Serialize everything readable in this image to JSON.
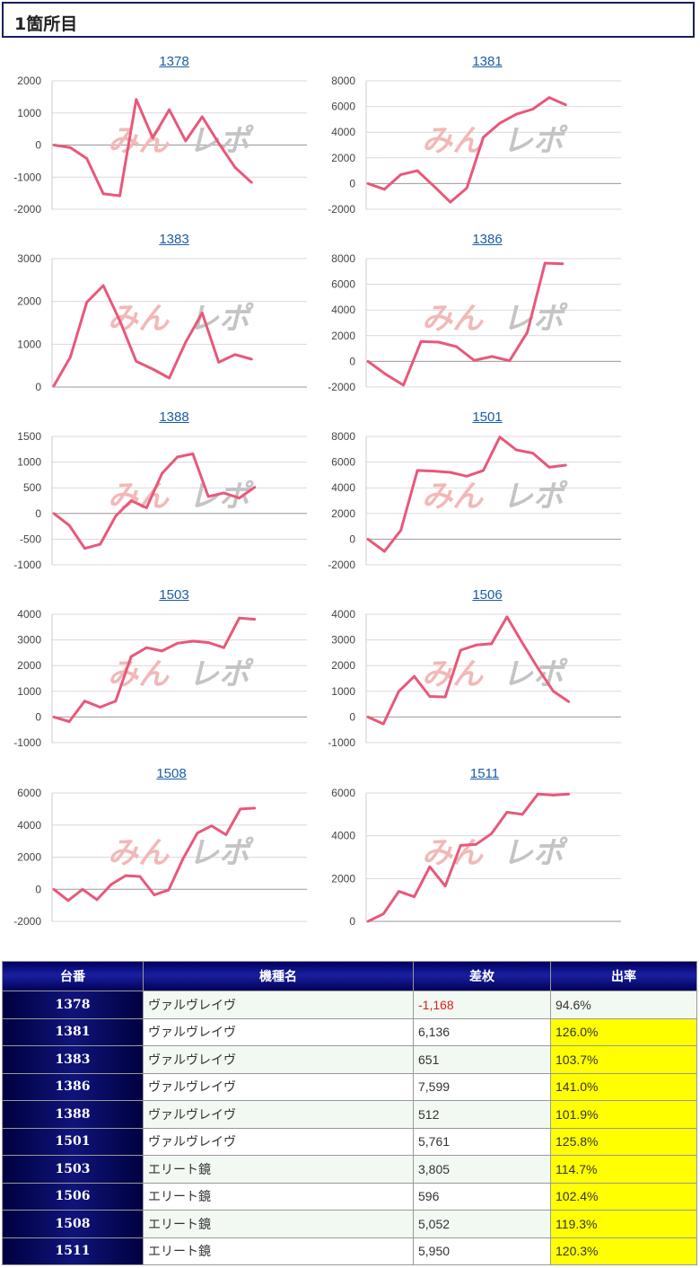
{
  "header": {
    "title": "1箇所目"
  },
  "colors": {
    "line": "#e8587a",
    "grid": "#d9d9d9",
    "link": "#1b5ca8",
    "highlight": "#ffff00",
    "negative": "#d81f1f",
    "header_bg": "#10147a"
  },
  "watermark": {
    "part1": "みん",
    "part2": "レポ"
  },
  "chart_data": [
    {
      "type": "line",
      "title": "1378",
      "ylim": [
        -2000,
        2000
      ],
      "yticks": [
        2000,
        1000,
        0,
        -1000,
        -2000
      ],
      "values": [
        0,
        -80,
        -420,
        -1520,
        -1580,
        1420,
        220,
        1100,
        130,
        880,
        60,
        -700,
        -1168
      ]
    },
    {
      "type": "line",
      "title": "1381",
      "ylim": [
        -2000,
        8000
      ],
      "yticks": [
        8000,
        6000,
        4000,
        2000,
        0,
        -2000
      ],
      "values": [
        0,
        -450,
        700,
        1000,
        -200,
        -1450,
        -350,
        3600,
        4700,
        5400,
        5800,
        6700,
        6136
      ]
    },
    {
      "type": "line",
      "title": "1383",
      "ylim": [
        0,
        3000
      ],
      "yticks": [
        3000,
        2000,
        1000,
        0
      ],
      "values": [
        30,
        700,
        1980,
        2370,
        1550,
        600,
        420,
        210,
        1050,
        1730,
        580,
        760,
        651
      ]
    },
    {
      "type": "line",
      "title": "1386",
      "ylim": [
        -2000,
        8000
      ],
      "yticks": [
        8000,
        6000,
        4000,
        2000,
        0,
        -2000
      ],
      "values": [
        0,
        -1000,
        -1850,
        1550,
        1500,
        1150,
        80,
        380,
        50,
        2250,
        7650,
        7599
      ]
    },
    {
      "type": "line",
      "title": "1388",
      "ylim": [
        -1000,
        1500
      ],
      "yticks": [
        1500,
        1000,
        500,
        0,
        -500,
        -1000
      ],
      "values": [
        0,
        -230,
        -680,
        -600,
        -50,
        250,
        110,
        780,
        1100,
        1160,
        330,
        400,
        300,
        512
      ]
    },
    {
      "type": "line",
      "title": "1501",
      "ylim": [
        -2000,
        8000
      ],
      "yticks": [
        8000,
        6000,
        4000,
        2000,
        0,
        -2000
      ],
      "values": [
        0,
        -950,
        700,
        5350,
        5300,
        5200,
        4900,
        5350,
        7950,
        6950,
        6700,
        5600,
        5761
      ]
    },
    {
      "type": "line",
      "title": "1503",
      "ylim": [
        -1000,
        4000
      ],
      "yticks": [
        4000,
        3000,
        2000,
        1000,
        0,
        -1000
      ],
      "values": [
        0,
        -180,
        620,
        380,
        620,
        2350,
        2700,
        2570,
        2870,
        2950,
        2900,
        2700,
        3850,
        3805
      ]
    },
    {
      "type": "line",
      "title": "1506",
      "ylim": [
        -1000,
        4000
      ],
      "yticks": [
        4000,
        3000,
        2000,
        1000,
        0,
        -1000
      ],
      "values": [
        0,
        -270,
        1000,
        1580,
        800,
        780,
        2600,
        2800,
        2850,
        3900,
        2880,
        1900,
        1000,
        596
      ]
    },
    {
      "type": "line",
      "title": "1508",
      "ylim": [
        -2000,
        6000
      ],
      "yticks": [
        6000,
        4000,
        2000,
        0,
        -2000
      ],
      "values": [
        0,
        -700,
        0,
        -650,
        300,
        850,
        800,
        -350,
        -50,
        1900,
        3500,
        3950,
        3400,
        5000,
        5052
      ]
    },
    {
      "type": "line",
      "title": "1511",
      "ylim": [
        0,
        6000
      ],
      "yticks": [
        6000,
        4000,
        2000,
        0
      ],
      "values": [
        0,
        350,
        1400,
        1150,
        2550,
        1650,
        3550,
        3600,
        4100,
        5100,
        5000,
        5950,
        5900,
        5950
      ]
    }
  ],
  "table": {
    "headers": [
      "台番",
      "機種名",
      "差枚",
      "出率"
    ],
    "rows": [
      {
        "num": "1378",
        "name": "ヴァルヴレイヴ",
        "diff": "-1,168",
        "rate": "94.6%"
      },
      {
        "num": "1381",
        "name": "ヴァルヴレイヴ",
        "diff": "6,136",
        "rate": "126.0%"
      },
      {
        "num": "1383",
        "name": "ヴァルヴレイヴ",
        "diff": "651",
        "rate": "103.7%"
      },
      {
        "num": "1386",
        "name": "ヴァルヴレイヴ",
        "diff": "7,599",
        "rate": "141.0%"
      },
      {
        "num": "1388",
        "name": "ヴァルヴレイヴ",
        "diff": "512",
        "rate": "101.9%"
      },
      {
        "num": "1501",
        "name": "ヴァルヴレイヴ",
        "diff": "5,761",
        "rate": "125.8%"
      },
      {
        "num": "1503",
        "name": "エリート鏡",
        "diff": "3,805",
        "rate": "114.7%"
      },
      {
        "num": "1506",
        "name": "エリート鏡",
        "diff": "596",
        "rate": "102.4%"
      },
      {
        "num": "1508",
        "name": "エリート鏡",
        "diff": "5,052",
        "rate": "119.3%"
      },
      {
        "num": "1511",
        "name": "エリート鏡",
        "diff": "5,950",
        "rate": "120.3%"
      }
    ]
  }
}
